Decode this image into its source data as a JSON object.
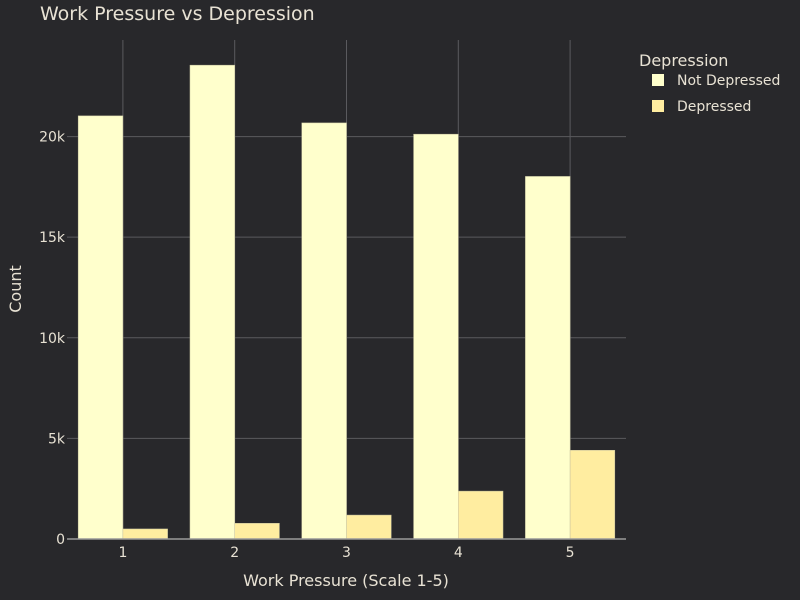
{
  "chart_data": {
    "type": "bar",
    "title": "Work Pressure vs Depression",
    "xlabel": "Work Pressure (Scale 1-5)",
    "ylabel": "Count",
    "categories": [
      "1",
      "2",
      "3",
      "4",
      "5"
    ],
    "ylim": [
      0,
      24800
    ],
    "yticks": [
      0,
      5000,
      10000,
      15000,
      20000
    ],
    "ytick_labels": [
      "0",
      "5k",
      "10k",
      "15k",
      "20k"
    ],
    "grid": true,
    "legend": {
      "title": "Depression",
      "placement": "top-right"
    },
    "series": [
      {
        "name": "Not Depressed",
        "color": "#ffffcc",
        "values": [
          21030,
          23550,
          20680,
          20120,
          18020
        ]
      },
      {
        "name": "Depressed",
        "color": "#ffeda0",
        "values": [
          500,
          780,
          1190,
          2380,
          4410
        ]
      }
    ]
  }
}
